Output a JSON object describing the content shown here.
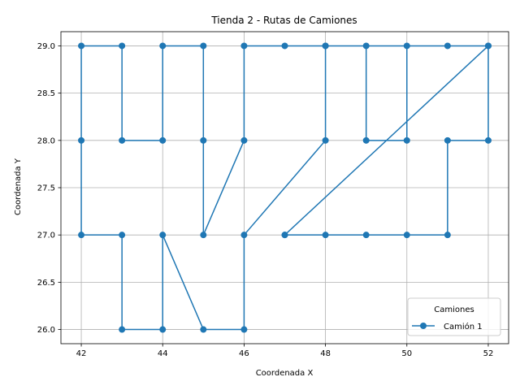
{
  "chart_data": {
    "type": "line",
    "title": "Tienda 2 - Rutas de Camiones",
    "xlabel": "Coordenada X",
    "ylabel": "Coordenada Y",
    "xlim": [
      41.5,
      52.5
    ],
    "ylim": [
      25.85,
      29.15
    ],
    "xticks": [
      42,
      44,
      46,
      48,
      50,
      52
    ],
    "yticks": [
      26.0,
      26.5,
      27.0,
      27.5,
      28.0,
      28.5,
      29.0
    ],
    "xtick_labels": [
      "42",
      "44",
      "46",
      "48",
      "50",
      "52"
    ],
    "ytick_labels": [
      "26.0",
      "26.5",
      "27.0",
      "27.5",
      "28.0",
      "28.5",
      "29.0"
    ],
    "grid": true,
    "legend": {
      "title": "Camiones",
      "position": "lower-right"
    },
    "series": [
      {
        "name": "Camión 1",
        "color": "#1f77b4",
        "marker": "circle",
        "points": [
          [
            47,
            27
          ],
          [
            48,
            27
          ],
          [
            49,
            27
          ],
          [
            50,
            27
          ],
          [
            51,
            27
          ],
          [
            51,
            28
          ],
          [
            52,
            28
          ],
          [
            52,
            29
          ],
          [
            51,
            29
          ],
          [
            50,
            29
          ],
          [
            50,
            28
          ],
          [
            49,
            28
          ],
          [
            49,
            29
          ],
          [
            48,
            29
          ],
          [
            47,
            29
          ],
          [
            46,
            29
          ],
          [
            46,
            28
          ],
          [
            45,
            27
          ],
          [
            45,
            28
          ],
          [
            45,
            29
          ],
          [
            44,
            29
          ],
          [
            44,
            28
          ],
          [
            43,
            28
          ],
          [
            43,
            29
          ],
          [
            42,
            29
          ],
          [
            42,
            28
          ],
          [
            42,
            27
          ],
          [
            43,
            27
          ],
          [
            43,
            26
          ],
          [
            44,
            26
          ],
          [
            44,
            27
          ],
          [
            45,
            26
          ],
          [
            46,
            26
          ],
          [
            46,
            27
          ],
          [
            48,
            28
          ],
          [
            48,
            29
          ],
          [
            52,
            29
          ],
          [
            47,
            27
          ]
        ]
      }
    ]
  }
}
